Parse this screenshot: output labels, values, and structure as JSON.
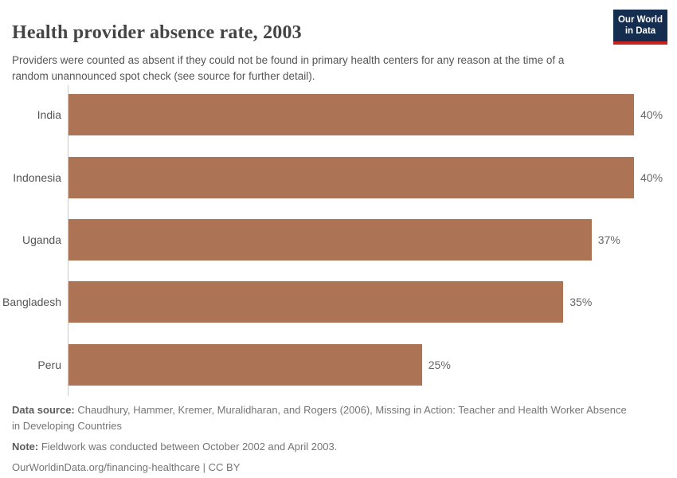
{
  "header": {
    "title": "Health provider absence rate, 2003",
    "subtitle": "Providers were counted as absent if they could not be found in primary health centers for any reason at the time of a random unannounced spot check (see source for further detail).",
    "logo": {
      "line1": "Our World",
      "line2": "in Data",
      "bg_color": "#152d4e",
      "stripe_color": "#c8231e"
    }
  },
  "chart_data": {
    "type": "bar",
    "orientation": "horizontal",
    "title": "Health provider absence rate, 2003",
    "categories": [
      "India",
      "Indonesia",
      "Uganda",
      "Bangladesh",
      "Peru"
    ],
    "values": [
      40,
      40,
      37,
      35,
      25
    ],
    "value_labels": [
      "40%",
      "40%",
      "37%",
      "35%",
      "25%"
    ],
    "unit": "%",
    "xlim": [
      0,
      40
    ],
    "grid": false,
    "legend": "none",
    "bar_color": "#ad7355",
    "axis_line_color": "#cccccc"
  },
  "footer": {
    "data_source_label": "Data source:",
    "data_source_text": " Chaudhury, Hammer, Kremer, Muralidharan, and Rogers (2006), Missing in Action: Teacher and Health Worker Absence in Developing Countries",
    "note_label": "Note:",
    "note_text": " Fieldwork was conducted between October 2002 and April 2003.",
    "link_text": "OurWorldinData.org/financing-healthcare | CC BY"
  }
}
